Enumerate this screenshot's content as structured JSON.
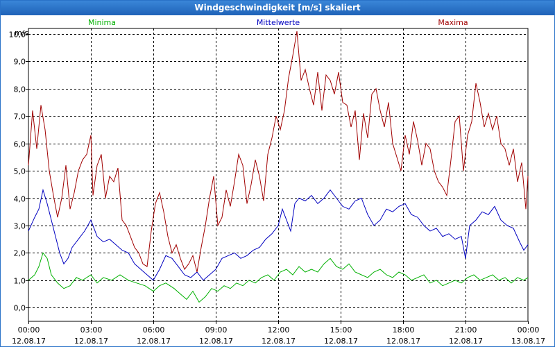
{
  "window": {
    "title": "Windgeschwindigkeit [m/s] skaliert"
  },
  "colors": {
    "min": "#00b000",
    "mean": "#0000c0",
    "max": "#a00000",
    "grid": "#000000",
    "title_bg": "#1f63b8"
  },
  "chart_data": {
    "type": "line",
    "ylabel": "m/s",
    "ylim": [
      -0.5,
      10.2
    ],
    "yticks": [
      "0,0",
      "1,0",
      "2,0",
      "3,0",
      "4,0",
      "5,0",
      "6,0",
      "7,0",
      "8,0",
      "9,0",
      "10,0"
    ],
    "ytick_values": [
      0,
      1,
      2,
      3,
      4,
      5,
      6,
      7,
      8,
      9,
      10
    ],
    "xlim_hours": [
      0,
      24
    ],
    "xticks": [
      {
        "time": "00:00",
        "date": "12.08.17"
      },
      {
        "time": "03:00",
        "date": "12.08.17"
      },
      {
        "time": "06:00",
        "date": "12.08.17"
      },
      {
        "time": "09:00",
        "date": "12.08.17"
      },
      {
        "time": "12:00",
        "date": "12.08.17"
      },
      {
        "time": "15:00",
        "date": "12.08.17"
      },
      {
        "time": "18:00",
        "date": "12.08.17"
      },
      {
        "time": "21:00",
        "date": "12.08.17"
      },
      {
        "time": "00:00",
        "date": "13.08.17"
      }
    ],
    "grid": true,
    "series": [
      {
        "name": "Minima",
        "color": "#00b000",
        "points": [
          [
            0,
            1.0
          ],
          [
            0.3,
            1.2
          ],
          [
            0.5,
            1.5
          ],
          [
            0.7,
            2.0
          ],
          [
            0.9,
            1.8
          ],
          [
            1.1,
            1.2
          ],
          [
            1.4,
            0.9
          ],
          [
            1.7,
            0.7
          ],
          [
            2.0,
            0.8
          ],
          [
            2.3,
            1.1
          ],
          [
            2.6,
            1.0
          ],
          [
            3.0,
            1.2
          ],
          [
            3.3,
            0.9
          ],
          [
            3.6,
            1.1
          ],
          [
            4.0,
            1.0
          ],
          [
            4.4,
            1.2
          ],
          [
            4.8,
            1.0
          ],
          [
            5.2,
            0.9
          ],
          [
            5.6,
            0.8
          ],
          [
            6.0,
            0.6
          ],
          [
            6.3,
            0.8
          ],
          [
            6.6,
            0.9
          ],
          [
            7.0,
            0.7
          ],
          [
            7.3,
            0.5
          ],
          [
            7.6,
            0.3
          ],
          [
            7.9,
            0.6
          ],
          [
            8.2,
            0.2
          ],
          [
            8.5,
            0.4
          ],
          [
            8.8,
            0.7
          ],
          [
            9.1,
            0.6
          ],
          [
            9.4,
            0.8
          ],
          [
            9.7,
            0.7
          ],
          [
            10.0,
            0.9
          ],
          [
            10.3,
            0.8
          ],
          [
            10.6,
            1.0
          ],
          [
            10.9,
            0.9
          ],
          [
            11.2,
            1.1
          ],
          [
            11.5,
            1.2
          ],
          [
            11.8,
            1.0
          ],
          [
            12.1,
            1.3
          ],
          [
            12.4,
            1.4
          ],
          [
            12.7,
            1.2
          ],
          [
            13.0,
            1.5
          ],
          [
            13.3,
            1.3
          ],
          [
            13.6,
            1.4
          ],
          [
            13.9,
            1.3
          ],
          [
            14.2,
            1.6
          ],
          [
            14.5,
            1.8
          ],
          [
            14.8,
            1.5
          ],
          [
            15.1,
            1.4
          ],
          [
            15.4,
            1.6
          ],
          [
            15.7,
            1.3
          ],
          [
            16.0,
            1.2
          ],
          [
            16.3,
            1.1
          ],
          [
            16.6,
            1.3
          ],
          [
            16.9,
            1.4
          ],
          [
            17.2,
            1.2
          ],
          [
            17.5,
            1.1
          ],
          [
            17.8,
            1.3
          ],
          [
            18.1,
            1.2
          ],
          [
            18.4,
            1.0
          ],
          [
            18.7,
            1.1
          ],
          [
            19.0,
            1.2
          ],
          [
            19.3,
            0.9
          ],
          [
            19.6,
            1.0
          ],
          [
            19.9,
            0.8
          ],
          [
            20.2,
            0.9
          ],
          [
            20.5,
            1.0
          ],
          [
            20.8,
            0.9
          ],
          [
            21.1,
            1.1
          ],
          [
            21.4,
            1.2
          ],
          [
            21.7,
            1.0
          ],
          [
            22.0,
            1.1
          ],
          [
            22.3,
            1.2
          ],
          [
            22.6,
            1.0
          ],
          [
            22.9,
            1.1
          ],
          [
            23.2,
            0.9
          ],
          [
            23.5,
            1.1
          ],
          [
            23.8,
            1.0
          ],
          [
            24.0,
            1.1
          ]
        ]
      },
      {
        "name": "Mittelwerte",
        "color": "#0000c0",
        "points": [
          [
            0,
            2.8
          ],
          [
            0.3,
            3.3
          ],
          [
            0.5,
            3.6
          ],
          [
            0.7,
            4.3
          ],
          [
            0.9,
            3.8
          ],
          [
            1.1,
            3.2
          ],
          [
            1.3,
            2.6
          ],
          [
            1.5,
            2.0
          ],
          [
            1.7,
            1.6
          ],
          [
            1.9,
            1.8
          ],
          [
            2.1,
            2.2
          ],
          [
            2.4,
            2.5
          ],
          [
            2.7,
            2.8
          ],
          [
            3.0,
            3.2
          ],
          [
            3.3,
            2.6
          ],
          [
            3.6,
            2.4
          ],
          [
            3.9,
            2.5
          ],
          [
            4.2,
            2.3
          ],
          [
            4.5,
            2.1
          ],
          [
            4.8,
            2.0
          ],
          [
            5.1,
            1.6
          ],
          [
            5.4,
            1.4
          ],
          [
            5.7,
            1.2
          ],
          [
            6.0,
            1.0
          ],
          [
            6.3,
            1.4
          ],
          [
            6.6,
            1.9
          ],
          [
            6.9,
            1.8
          ],
          [
            7.2,
            1.5
          ],
          [
            7.5,
            1.2
          ],
          [
            7.8,
            1.1
          ],
          [
            8.1,
            1.3
          ],
          [
            8.4,
            1.0
          ],
          [
            8.7,
            1.2
          ],
          [
            9.0,
            1.4
          ],
          [
            9.3,
            1.8
          ],
          [
            9.6,
            1.9
          ],
          [
            9.9,
            2.0
          ],
          [
            10.2,
            1.8
          ],
          [
            10.5,
            1.9
          ],
          [
            10.8,
            2.1
          ],
          [
            11.1,
            2.2
          ],
          [
            11.4,
            2.5
          ],
          [
            11.7,
            2.7
          ],
          [
            12.0,
            3.0
          ],
          [
            12.2,
            3.6
          ],
          [
            12.4,
            3.2
          ],
          [
            12.6,
            2.8
          ],
          [
            12.8,
            3.8
          ],
          [
            13.0,
            4.0
          ],
          [
            13.3,
            3.9
          ],
          [
            13.6,
            4.1
          ],
          [
            13.9,
            3.8
          ],
          [
            14.2,
            4.0
          ],
          [
            14.5,
            4.3
          ],
          [
            14.8,
            4.0
          ],
          [
            15.1,
            3.7
          ],
          [
            15.4,
            3.6
          ],
          [
            15.7,
            3.9
          ],
          [
            16.0,
            4.0
          ],
          [
            16.3,
            3.4
          ],
          [
            16.6,
            3.0
          ],
          [
            16.9,
            3.2
          ],
          [
            17.2,
            3.6
          ],
          [
            17.5,
            3.5
          ],
          [
            17.8,
            3.7
          ],
          [
            18.1,
            3.8
          ],
          [
            18.4,
            3.4
          ],
          [
            18.7,
            3.3
          ],
          [
            19.0,
            3.0
          ],
          [
            19.3,
            2.8
          ],
          [
            19.6,
            2.9
          ],
          [
            19.9,
            2.6
          ],
          [
            20.2,
            2.7
          ],
          [
            20.5,
            2.5
          ],
          [
            20.8,
            2.6
          ],
          [
            21.0,
            1.8
          ],
          [
            21.2,
            3.0
          ],
          [
            21.5,
            3.2
          ],
          [
            21.8,
            3.5
          ],
          [
            22.1,
            3.4
          ],
          [
            22.4,
            3.7
          ],
          [
            22.7,
            3.2
          ],
          [
            23.0,
            3.0
          ],
          [
            23.3,
            2.9
          ],
          [
            23.6,
            2.4
          ],
          [
            23.8,
            2.1
          ],
          [
            24.0,
            2.3
          ]
        ]
      },
      {
        "name": "Maxima",
        "color": "#a00000",
        "points": [
          [
            0,
            5.2
          ],
          [
            0.2,
            7.2
          ],
          [
            0.4,
            5.8
          ],
          [
            0.6,
            7.4
          ],
          [
            0.8,
            6.5
          ],
          [
            1.0,
            5.0
          ],
          [
            1.2,
            4.1
          ],
          [
            1.4,
            3.3
          ],
          [
            1.6,
            4.0
          ],
          [
            1.8,
            5.2
          ],
          [
            2.0,
            3.6
          ],
          [
            2.2,
            4.2
          ],
          [
            2.4,
            5.0
          ],
          [
            2.6,
            5.4
          ],
          [
            2.8,
            5.6
          ],
          [
            3.0,
            6.3
          ],
          [
            3.1,
            4.1
          ],
          [
            3.3,
            5.2
          ],
          [
            3.5,
            5.6
          ],
          [
            3.7,
            4.0
          ],
          [
            3.9,
            4.8
          ],
          [
            4.1,
            4.6
          ],
          [
            4.3,
            5.1
          ],
          [
            4.5,
            3.2
          ],
          [
            4.7,
            3.0
          ],
          [
            4.9,
            2.6
          ],
          [
            5.1,
            2.2
          ],
          [
            5.3,
            2.0
          ],
          [
            5.5,
            1.6
          ],
          [
            5.7,
            1.5
          ],
          [
            5.9,
            2.8
          ],
          [
            6.1,
            3.8
          ],
          [
            6.3,
            4.2
          ],
          [
            6.5,
            3.5
          ],
          [
            6.7,
            2.6
          ],
          [
            6.9,
            2.0
          ],
          [
            7.1,
            2.3
          ],
          [
            7.3,
            1.8
          ],
          [
            7.5,
            1.4
          ],
          [
            7.7,
            1.6
          ],
          [
            7.9,
            1.9
          ],
          [
            8.1,
            1.3
          ],
          [
            8.3,
            2.2
          ],
          [
            8.5,
            3.0
          ],
          [
            8.7,
            4.0
          ],
          [
            8.9,
            4.8
          ],
          [
            9.1,
            3.0
          ],
          [
            9.3,
            3.3
          ],
          [
            9.5,
            4.3
          ],
          [
            9.7,
            3.7
          ],
          [
            9.9,
            4.6
          ],
          [
            10.1,
            5.6
          ],
          [
            10.3,
            5.2
          ],
          [
            10.5,
            3.8
          ],
          [
            10.7,
            4.5
          ],
          [
            10.9,
            5.4
          ],
          [
            11.1,
            4.8
          ],
          [
            11.3,
            3.9
          ],
          [
            11.5,
            5.6
          ],
          [
            11.7,
            6.2
          ],
          [
            11.9,
            7.0
          ],
          [
            12.1,
            6.5
          ],
          [
            12.3,
            7.2
          ],
          [
            12.5,
            8.4
          ],
          [
            12.7,
            9.2
          ],
          [
            12.9,
            10.1
          ],
          [
            13.1,
            8.3
          ],
          [
            13.3,
            8.7
          ],
          [
            13.5,
            8.0
          ],
          [
            13.7,
            7.4
          ],
          [
            13.9,
            8.6
          ],
          [
            14.1,
            7.2
          ],
          [
            14.3,
            8.5
          ],
          [
            14.5,
            8.3
          ],
          [
            14.7,
            7.8
          ],
          [
            14.9,
            8.6
          ],
          [
            15.1,
            7.5
          ],
          [
            15.3,
            7.4
          ],
          [
            15.5,
            6.6
          ],
          [
            15.7,
            7.2
          ],
          [
            15.9,
            5.4
          ],
          [
            16.1,
            7.1
          ],
          [
            16.3,
            6.2
          ],
          [
            16.5,
            7.8
          ],
          [
            16.7,
            8.0
          ],
          [
            16.9,
            7.2
          ],
          [
            17.1,
            6.6
          ],
          [
            17.3,
            7.5
          ],
          [
            17.5,
            6.0
          ],
          [
            17.7,
            5.5
          ],
          [
            17.9,
            5.0
          ],
          [
            18.1,
            6.3
          ],
          [
            18.3,
            5.6
          ],
          [
            18.5,
            6.8
          ],
          [
            18.7,
            6.1
          ],
          [
            18.9,
            5.2
          ],
          [
            19.1,
            6.0
          ],
          [
            19.3,
            5.8
          ],
          [
            19.5,
            5.0
          ],
          [
            19.7,
            4.6
          ],
          [
            19.9,
            4.4
          ],
          [
            20.1,
            4.1
          ],
          [
            20.3,
            5.4
          ],
          [
            20.5,
            6.8
          ],
          [
            20.7,
            7.0
          ],
          [
            20.9,
            5.0
          ],
          [
            21.1,
            6.3
          ],
          [
            21.3,
            6.8
          ],
          [
            21.5,
            8.2
          ],
          [
            21.7,
            7.5
          ],
          [
            21.9,
            6.6
          ],
          [
            22.1,
            7.1
          ],
          [
            22.3,
            6.5
          ],
          [
            22.5,
            7.0
          ],
          [
            22.7,
            6.0
          ],
          [
            22.9,
            5.8
          ],
          [
            23.1,
            5.2
          ],
          [
            23.3,
            5.8
          ],
          [
            23.5,
            4.6
          ],
          [
            23.7,
            5.3
          ],
          [
            23.9,
            3.6
          ],
          [
            24.0,
            4.8
          ]
        ]
      }
    ]
  }
}
